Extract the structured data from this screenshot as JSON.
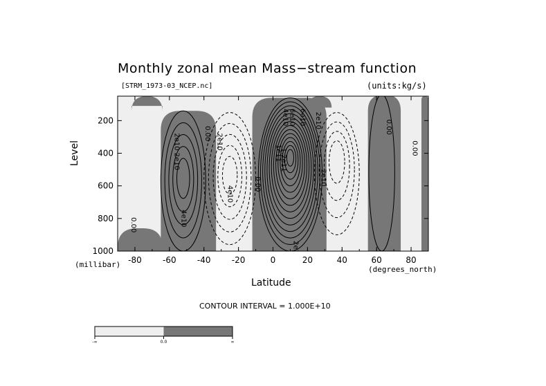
{
  "chart_data": {
    "type": "contour",
    "title": "Monthly zonal mean Mass−stream function",
    "file_label": "[STRM_1973-03_NCEP.nc]",
    "units_label": "(units:kg/s)",
    "xlabel": "Latitude",
    "x_unit": "(degrees_north)",
    "ylabel": "Level",
    "y_unit": "(millibar)",
    "xlim": [
      -90,
      90
    ],
    "ylim": [
      1000,
      50
    ],
    "y_reversed": true,
    "x_ticks": [
      "-80",
      "-60",
      "-40",
      "-20",
      "0",
      "20",
      "40",
      "60",
      "80"
    ],
    "x_tick_values": [
      -80,
      -60,
      -40,
      -20,
      0,
      20,
      40,
      60,
      80
    ],
    "y_ticks": [
      "200",
      "400",
      "600",
      "800",
      "1000"
    ],
    "y_tick_values": [
      200,
      400,
      600,
      800,
      1000
    ],
    "contour_interval_text": "CONTOUR INTERVAL = 1.000E+10",
    "contour_interval": 10000000000.0,
    "shading": {
      "negative_color": "#efefef",
      "positive_color": "#777777"
    },
    "cells": [
      {
        "sign": "positive",
        "center": [
          -52,
          550
        ],
        "lat_range": [
          -62,
          -36
        ],
        "p_range": [
          140,
          1000
        ],
        "max": 50000000000.0
      },
      {
        "sign": "negative",
        "center": [
          -25,
          530
        ],
        "lat_range": [
          -38,
          -8
        ],
        "p_range": [
          150,
          960
        ],
        "min": -50000000000.0
      },
      {
        "sign": "positive",
        "center": [
          10,
          420
        ],
        "lat_range": [
          -9,
          28
        ],
        "p_range": [
          60,
          1000
        ],
        "max": 150000000000.0
      },
      {
        "sign": "negative",
        "center": [
          37,
          430
        ],
        "lat_range": [
          24,
          50
        ],
        "p_range": [
          150,
          900
        ],
        "min": -40000000000.0
      },
      {
        "sign": "positive",
        "center": [
          63,
          450
        ],
        "lat_range": [
          57,
          72
        ],
        "p_range": [
          40,
          1000
        ],
        "max": 0
      }
    ],
    "contour_labels": [
      {
        "text": "2e10",
        "lat": -57,
        "p": 330
      },
      {
        "text": "2e10",
        "lat": -57,
        "p": 450
      },
      {
        "text": "4e10",
        "lat": -53,
        "p": 800
      },
      {
        "text": "0.00",
        "lat": -82,
        "p": 840
      },
      {
        "text": "0.00",
        "lat": -39,
        "p": 280
      },
      {
        "text": "2e10",
        "lat": -32,
        "p": 330
      },
      {
        "text": "4e10",
        "lat": -26,
        "p": 650
      },
      {
        "text": "0.00",
        "lat": -10,
        "p": 590
      },
      {
        "text": "4e10",
        "lat": 6,
        "p": 180
      },
      {
        "text": "6e10",
        "lat": 10,
        "p": 180
      },
      {
        "text": "6e10",
        "lat": 16,
        "p": 180
      },
      {
        "text": "1e11",
        "lat": 2,
        "p": 400
      },
      {
        "text": "1.2e11",
        "lat": 5,
        "p": 440
      },
      {
        "text": "2e10",
        "lat": 12,
        "p": 990
      },
      {
        "text": "2e10",
        "lat": 25,
        "p": 200
      },
      {
        "text": "2e10",
        "lat": 28,
        "p": 550
      },
      {
        "text": "0.00",
        "lat": 66,
        "p": 240
      },
      {
        "text": "0.00",
        "lat": 81,
        "p": 370
      }
    ]
  },
  "colorbar": {
    "labels": [
      "-∞",
      "0.0",
      "∞"
    ],
    "colors": [
      "#efefef",
      "#777777"
    ]
  }
}
